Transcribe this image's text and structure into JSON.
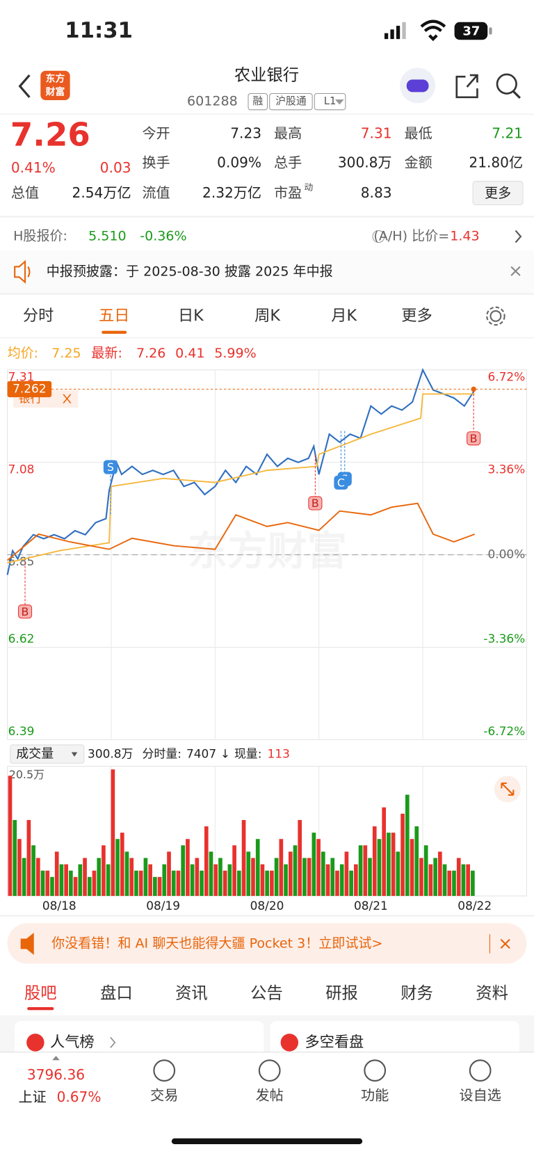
{
  "status": {
    "time": "11:31",
    "battery": "37"
  },
  "header": {
    "logo": [
      "东方",
      "财富"
    ],
    "title": "农业银行",
    "code": "601288",
    "tags": [
      "融",
      "沪股通",
      "L1"
    ]
  },
  "quote": {
    "price": "7.26",
    "change_pct": "0.41%",
    "change": "0.03",
    "fields": [
      {
        "label": "今开",
        "value": "7.23"
      },
      {
        "label": "最高",
        "value": "7.31"
      },
      {
        "label": "最低",
        "value": "7.21"
      },
      {
        "label": "换手",
        "value": "0.09%"
      },
      {
        "label": "总手",
        "value": "300.8万"
      },
      {
        "label": "金额",
        "value": "21.80亿"
      },
      {
        "label": "总值",
        "value": "2.54万亿"
      },
      {
        "label": "流值",
        "value": "2.32万亿"
      },
      {
        "label": "市盈",
        "sup": "动",
        "value": "8.83"
      }
    ],
    "more": "更多"
  },
  "h_share": {
    "label": "H股报价:",
    "price": "5.510",
    "change_pct": "-0.36%",
    "ratio_label": "(A/H) 比价=",
    "ratio": "1.43"
  },
  "notice": "中报预披露：于 2025-08-30 披露 2025 年中报",
  "tabs": {
    "items": [
      "分时",
      "五日",
      "日K",
      "周K",
      "月K",
      "更多"
    ],
    "active": 1
  },
  "summary": {
    "avg_label": "均价:",
    "avg": "7.25",
    "latest_label": "最新:",
    "latest": "7.26",
    "change": "0.41",
    "amplitude": "5.99%"
  },
  "chart_data": {
    "type": "line",
    "categories": [
      "08/18",
      "08/19",
      "08/20",
      "08/21",
      "08/22"
    ],
    "ylim": [
      6.39,
      7.31
    ],
    "yticks": [
      7.31,
      7.08,
      6.85,
      6.62,
      6.39
    ],
    "y2lim": [
      -6.72,
      6.72
    ],
    "y2ticks": [
      {
        "value": 6.72,
        "label": "6.72%"
      },
      {
        "value": 3.36,
        "label": "3.36%"
      },
      {
        "value": 0,
        "label": "0.00%"
      },
      {
        "value": -3.36,
        "label": "-3.36%"
      },
      {
        "value": -6.72,
        "label": "-6.72%"
      }
    ],
    "last": 7.262,
    "tag": "银行",
    "watermark": "东方财富",
    "markers": [
      "B",
      "S",
      "B",
      "S",
      "C",
      "B"
    ],
    "series": [
      {
        "color": "#2f6fc0",
        "x": [
          0,
          0.05,
          0.1,
          0.15,
          0.25,
          0.35,
          0.45,
          0.55,
          0.65,
          0.75,
          0.85,
          0.95,
          0.98,
          1.05,
          1.1,
          1.2,
          1.3,
          1.4,
          1.5,
          1.6,
          1.7,
          1.8,
          1.9,
          2.0,
          2.1,
          2.2,
          2.3,
          2.4,
          2.5,
          2.6,
          2.7,
          2.8,
          2.9,
          2.95,
          3.0,
          3.1,
          3.2,
          3.3,
          3.4,
          3.5,
          3.6,
          3.7,
          3.8,
          3.9,
          4.0,
          4.1,
          4.2,
          4.3,
          4.4,
          4.5
        ],
        "values": [
          6.8,
          6.86,
          6.84,
          6.87,
          6.9,
          6.89,
          6.9,
          6.89,
          6.91,
          6.9,
          6.93,
          6.94,
          7.01,
          7.08,
          7.05,
          7.07,
          7.05,
          7.06,
          7.05,
          7.06,
          7.02,
          7.03,
          7.0,
          7.02,
          7.06,
          7.03,
          7.07,
          7.05,
          7.1,
          7.07,
          7.09,
          7.08,
          7.09,
          7.12,
          7.05,
          7.15,
          7.13,
          7.15,
          7.14,
          7.22,
          7.2,
          7.22,
          7.21,
          7.23,
          7.31,
          7.26,
          7.25,
          7.24,
          7.22,
          7.26
        ]
      },
      {
        "color": "#f5b83d",
        "x": [
          0,
          0.5,
          0.98,
          1.0,
          1.5,
          2.0,
          2.5,
          2.98,
          3.0,
          3.5,
          3.98,
          4.0,
          4.5
        ],
        "values": [
          6.83,
          6.86,
          6.88,
          7.02,
          7.04,
          7.03,
          7.06,
          7.07,
          7.1,
          7.15,
          7.19,
          7.25,
          7.25
        ]
      },
      {
        "color": "#e8650a",
        "axis": "y2",
        "x": [
          0,
          0.3,
          0.6,
          0.98,
          1.2,
          1.6,
          2.0,
          2.2,
          2.5,
          2.7,
          3.0,
          3.2,
          3.5,
          3.7,
          3.95,
          4.1,
          4.3,
          4.5
        ],
        "values": [
          -0.2,
          0.75,
          0.47,
          0.2,
          0.6,
          0.33,
          0.2,
          1.45,
          1.03,
          1.17,
          0.89,
          1.59,
          1.45,
          1.73,
          1.87,
          0.75,
          0.47,
          0.75
        ]
      }
    ]
  },
  "volume": {
    "type": "bar",
    "label": "成交量",
    "total": "300.8万",
    "tick_label": "分时量:",
    "tick": "7407",
    "arrow": "↓",
    "current_label": "现量:",
    "current": "113",
    "ylim": [
      0,
      20.5
    ],
    "yticks": [
      {
        "value": 20.5,
        "label": "20.5万"
      }
    ],
    "series": [
      {
        "color": "#e8322d",
        "values": [
          19,
          9,
          12,
          6,
          4,
          7,
          5,
          3,
          6,
          4,
          8,
          20,
          10,
          6,
          4,
          5,
          3,
          7,
          4,
          9,
          6,
          11,
          5,
          4,
          8,
          12,
          6,
          5,
          4,
          9,
          7,
          12,
          6,
          9,
          5,
          4,
          7,
          5,
          8,
          11,
          14,
          10,
          13,
          9,
          6,
          5,
          7,
          4,
          6,
          5
        ]
      },
      {
        "color": "#1a9a1a",
        "values": [
          12,
          6,
          8,
          4,
          3,
          5,
          4,
          5,
          3,
          6,
          5,
          9,
          7,
          4,
          6,
          3,
          5,
          4,
          8,
          5,
          4,
          7,
          6,
          5,
          4,
          7,
          9,
          4,
          6,
          5,
          8,
          6,
          10,
          7,
          6,
          5,
          4,
          8,
          6,
          9,
          10,
          7,
          16,
          11,
          8,
          6,
          5,
          4,
          5,
          4
        ]
      }
    ]
  },
  "banner": "你没看错！和 AI 聊天也能得大疆 Pocket 3！立即试试>",
  "sections": {
    "items": [
      "股吧",
      "盘口",
      "资讯",
      "公告",
      "研报",
      "财务",
      "资料"
    ],
    "active": 0
  },
  "cards": [
    "人气榜",
    "多空看盘"
  ],
  "index": {
    "value": "3796.36",
    "name": "上证",
    "change_pct": "0.67%"
  },
  "toolbar": [
    "交易",
    "发帖",
    "功能",
    "设自选"
  ]
}
